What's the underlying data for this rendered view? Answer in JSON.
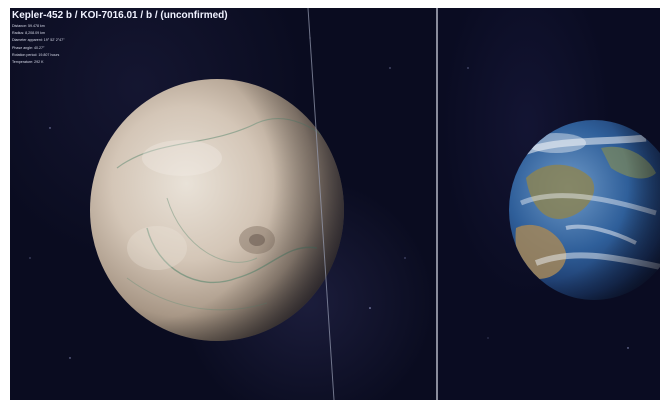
{
  "header": {
    "title": "Kepler-452 b / KOI-7016.01 / b / (unconfirmed)",
    "lines": [
      "Distance: 59.478 km",
      "Radius: 8,208.09 km",
      "Diameter apparent: 19° 52' 2\"47\"",
      "Phase angle: 40.27°",
      "Rotation period: 19.807 hours",
      "Temperature: 292 K"
    ]
  },
  "colors": {
    "space": "#0a0c20",
    "divider": "#8a8c9c",
    "exoplanet": "#cfc1b2",
    "earth_ocean": "#2f5f9a"
  },
  "panes": {
    "left": {
      "icon": "exoplanet-globe-icon"
    },
    "right": {
      "icon": "earth-globe-icon"
    }
  }
}
